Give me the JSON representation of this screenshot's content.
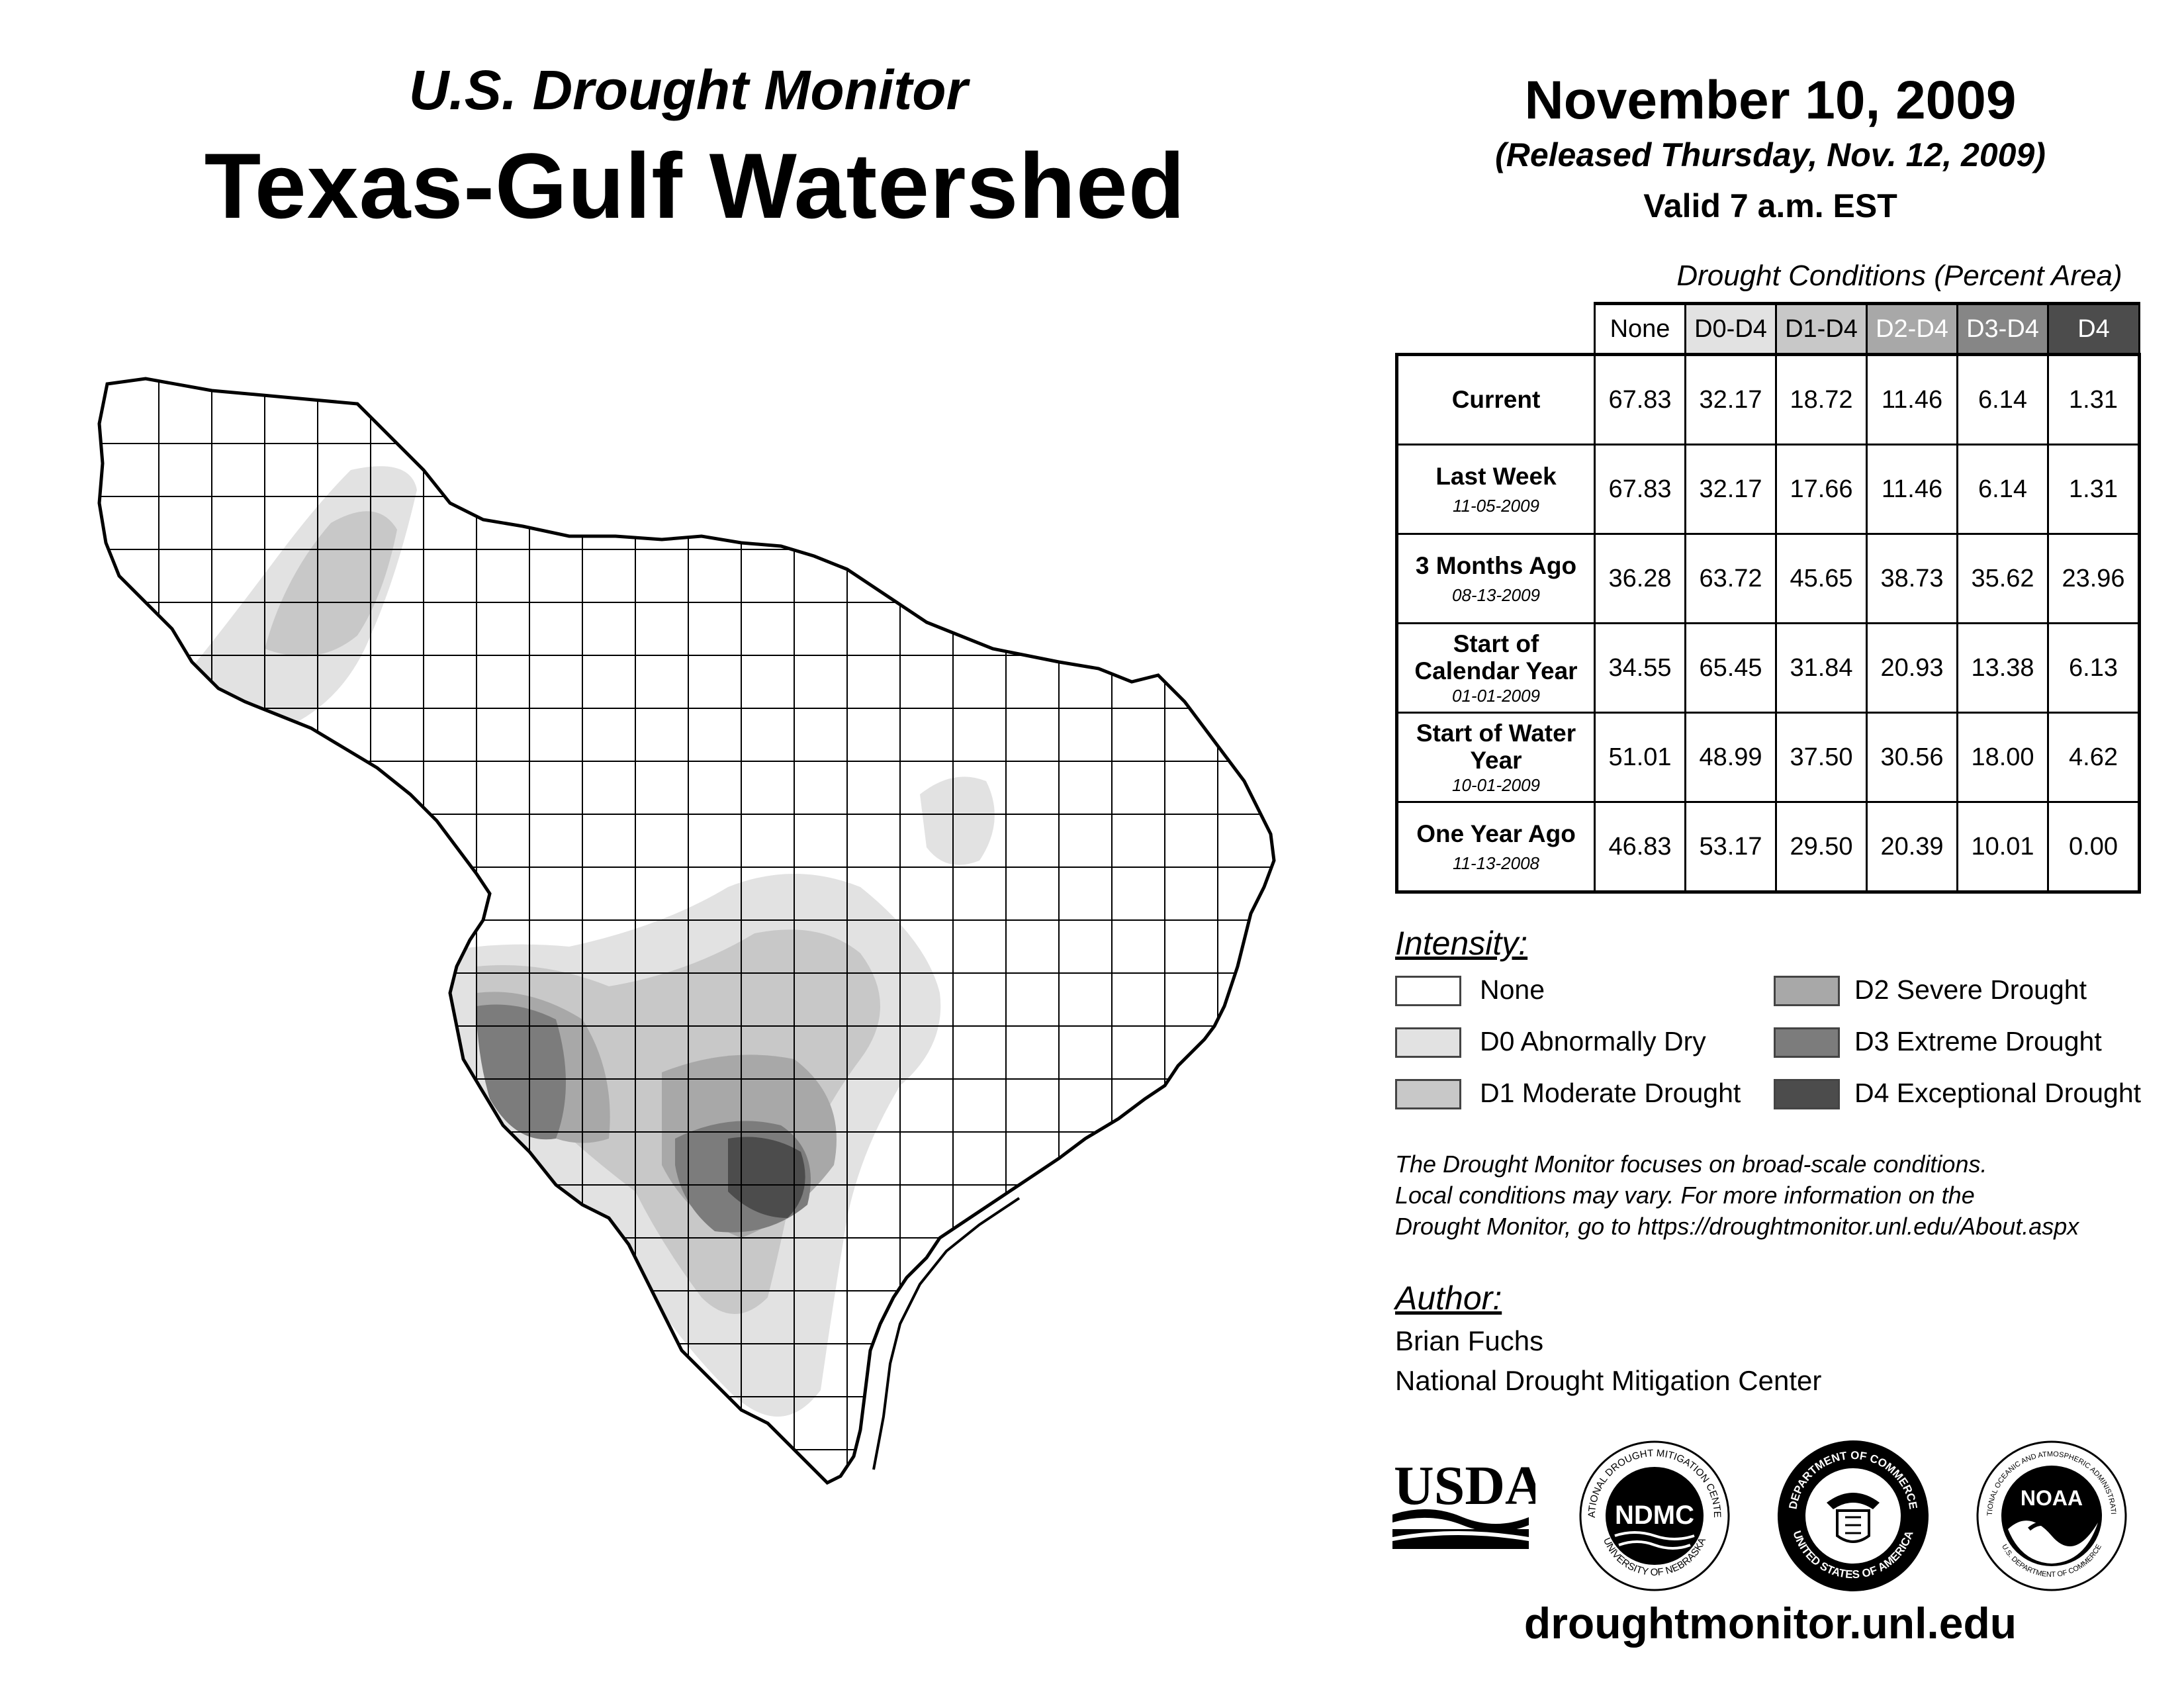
{
  "header": {
    "subtitle": "U.S. Drought Monitor",
    "title": "Texas-Gulf Watershed",
    "date": "November 10, 2009",
    "released": "(Released Thursday, Nov. 12, 2009)",
    "valid": "Valid 7 a.m. EST"
  },
  "table": {
    "caption": "Drought Conditions (Percent Area)",
    "columns": [
      "None",
      "D0-D4",
      "D1-D4",
      "D2-D4",
      "D3-D4",
      "D4"
    ],
    "rows": [
      {
        "label": "Current",
        "date": "",
        "values": [
          "67.83",
          "32.17",
          "18.72",
          "11.46",
          "6.14",
          "1.31"
        ]
      },
      {
        "label": "Last Week",
        "date": "11-05-2009",
        "values": [
          "67.83",
          "32.17",
          "17.66",
          "11.46",
          "6.14",
          "1.31"
        ]
      },
      {
        "label": "3 Months Ago",
        "date": "08-13-2009",
        "values": [
          "36.28",
          "63.72",
          "45.65",
          "38.73",
          "35.62",
          "23.96"
        ]
      },
      {
        "label": "Start of Calendar Year",
        "date": "01-01-2009",
        "values": [
          "34.55",
          "65.45",
          "31.84",
          "20.93",
          "13.38",
          "6.13"
        ]
      },
      {
        "label": "Start of Water Year",
        "date": "10-01-2009",
        "values": [
          "51.01",
          "48.99",
          "37.50",
          "30.56",
          "18.00",
          "4.62"
        ]
      },
      {
        "label": "One Year Ago",
        "date": "11-13-2008",
        "values": [
          "46.83",
          "53.17",
          "29.50",
          "20.39",
          "10.01",
          "0.00"
        ]
      }
    ]
  },
  "legend": {
    "title": "Intensity:",
    "items": [
      {
        "label": "None",
        "color": "#ffffff"
      },
      {
        "label": "D0 Abnormally Dry",
        "color": "#e2e2e2"
      },
      {
        "label": "D1 Moderate Drought",
        "color": "#c8c8c8"
      },
      {
        "label": "D2 Severe Drought",
        "color": "#a8a8a8"
      },
      {
        "label": "D3 Extreme Drought",
        "color": "#7c7c7c"
      },
      {
        "label": "D4 Exceptional Drought",
        "color": "#4c4c4c"
      }
    ]
  },
  "note": {
    "line1": "The Drought Monitor focuses on broad-scale conditions.",
    "line2": "Local conditions may vary. For more information on the",
    "line3": "Drought Monitor, go to https://droughtmonitor.unl.edu/About.aspx"
  },
  "author": {
    "title": "Author:",
    "name": "Brian Fuchs",
    "org": "National Drought Mitigation Center"
  },
  "logos": {
    "usda": "USDA",
    "ndmc": "NDMC",
    "ndmc_ring_top": "NATIONAL DROUGHT MITIGATION CENTER",
    "ndmc_ring_bottom": "UNIVERSITY OF NEBRASKA",
    "doc_ring_top": "DEPARTMENT OF COMMERCE",
    "doc_ring_bottom": "UNITED STATES OF AMERICA",
    "noaa": "NOAA",
    "noaa_ring_top": "NATIONAL OCEANIC AND ATMOSPHERIC ADMINISTRATION",
    "noaa_ring_bottom": "U.S. DEPARTMENT OF COMMERCE"
  },
  "website": "droughtmonitor.unl.edu"
}
